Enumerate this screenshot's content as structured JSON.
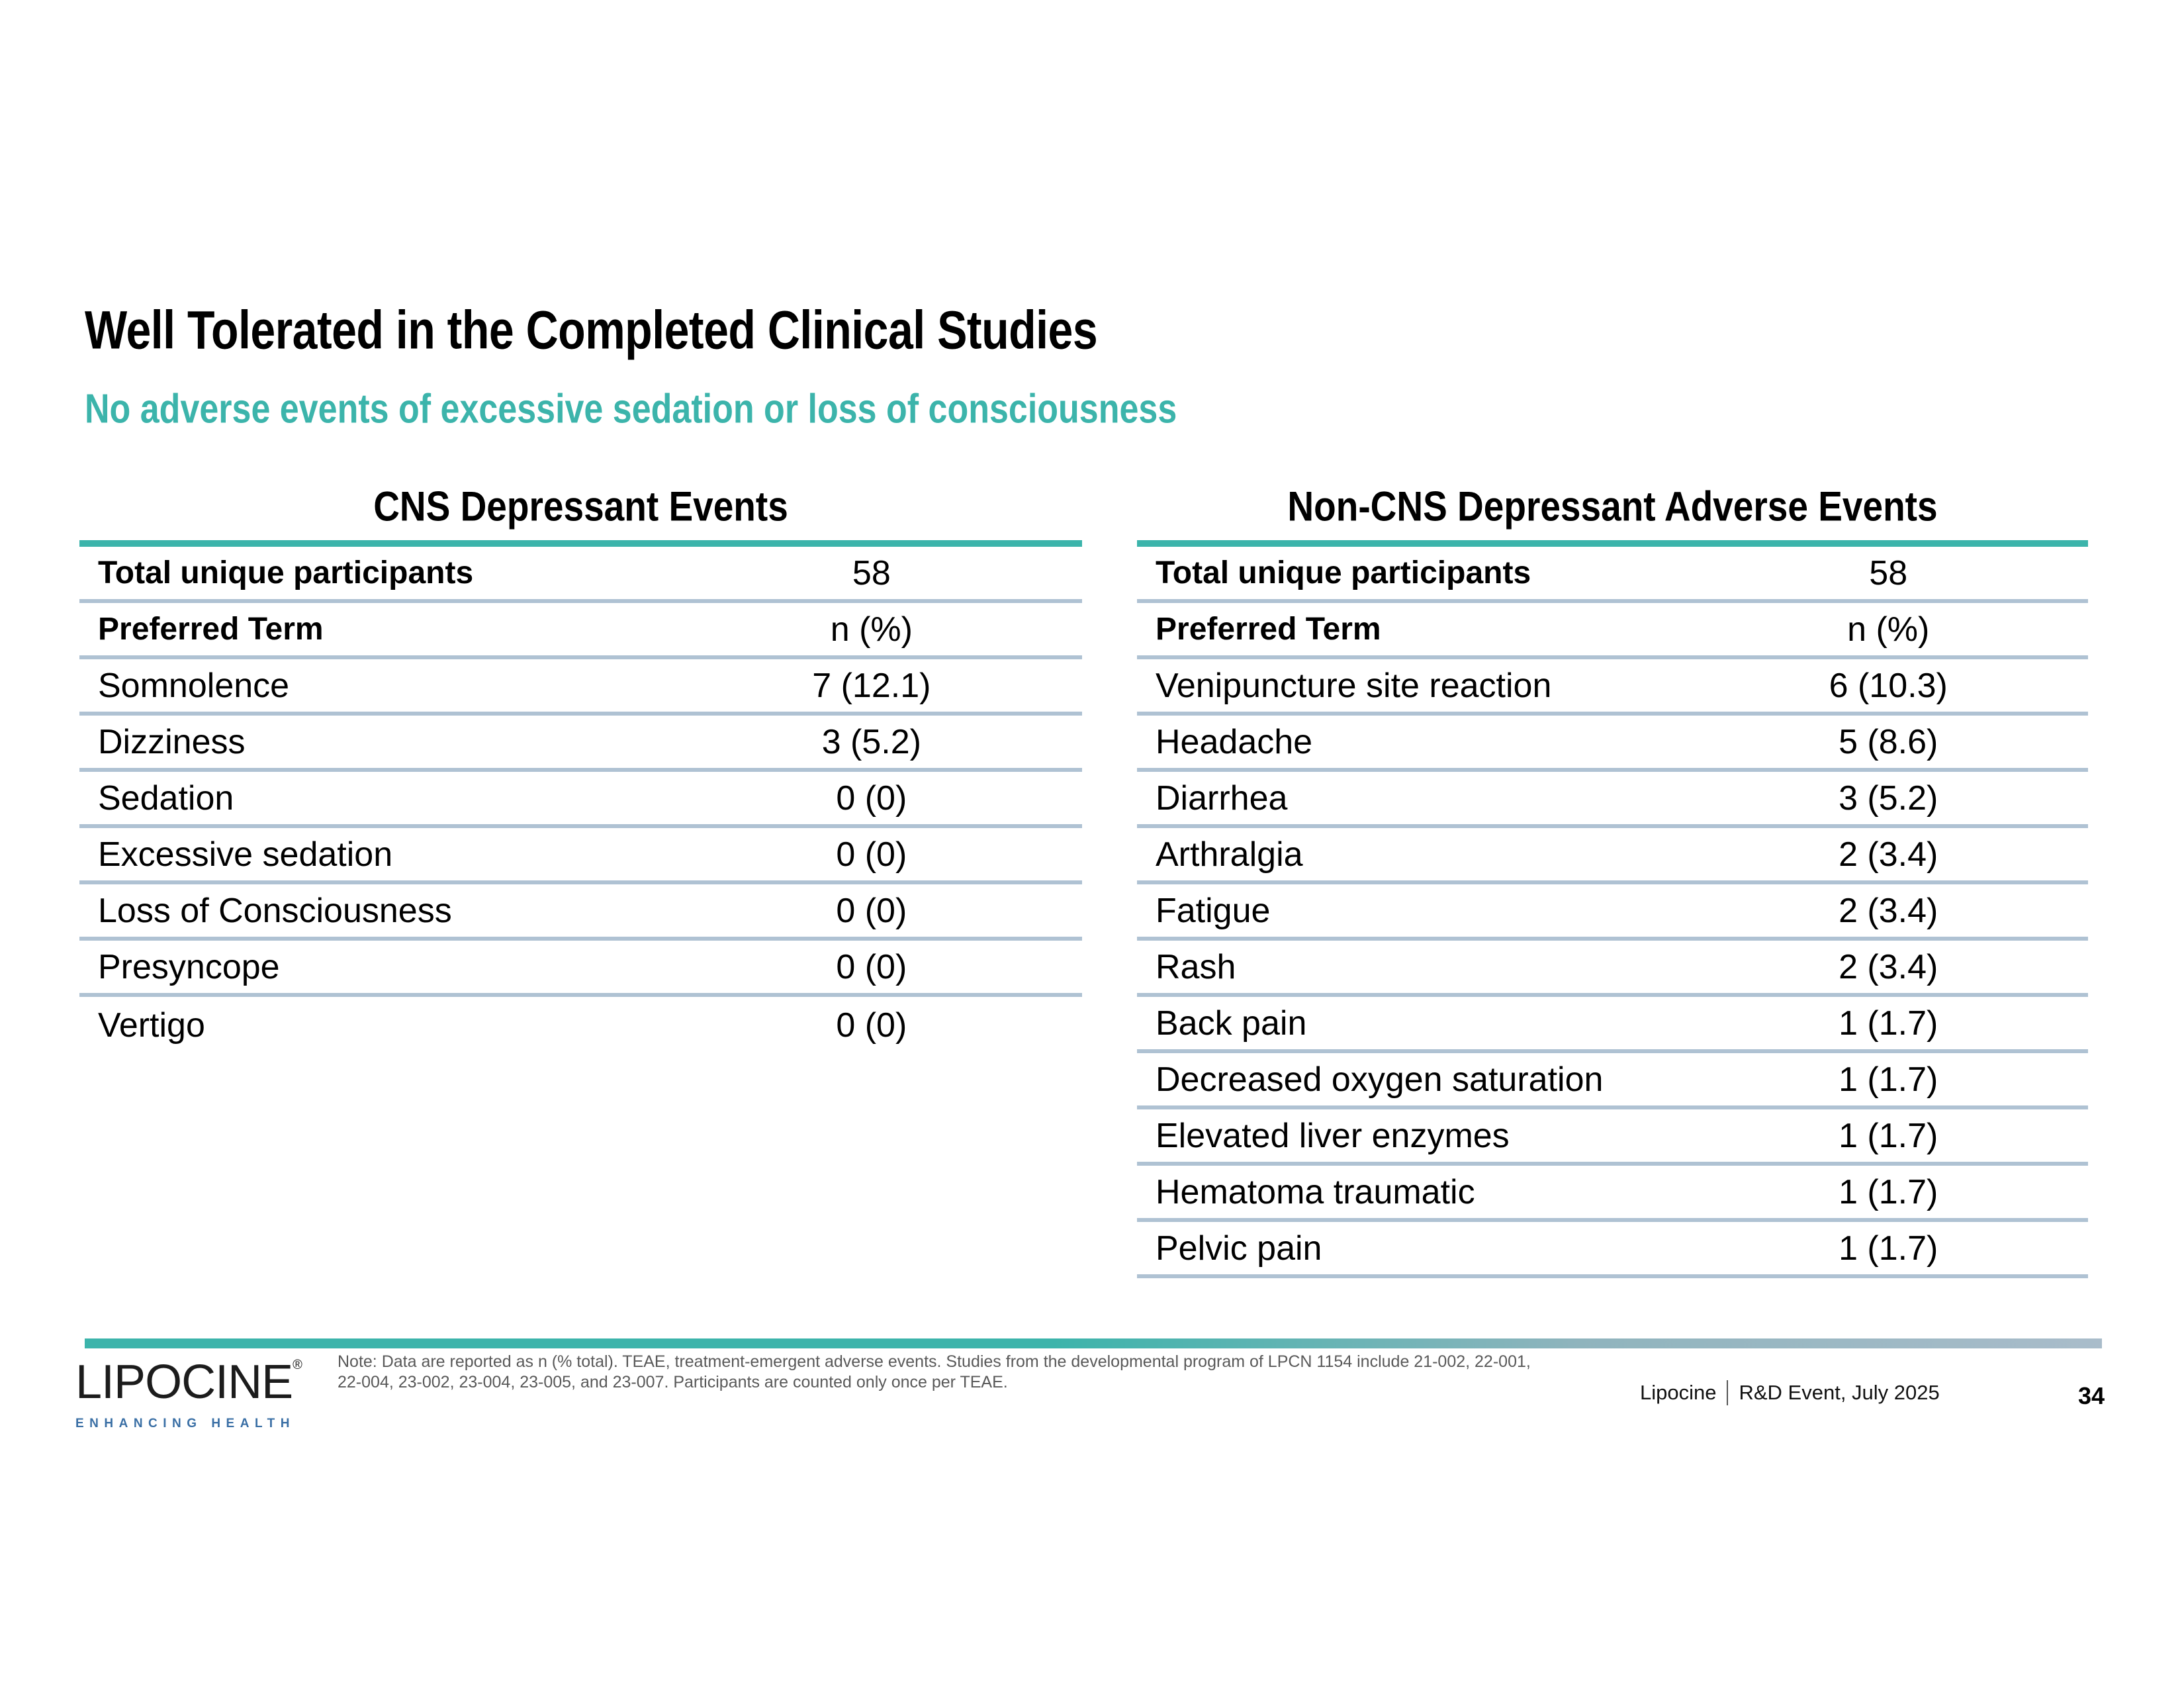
{
  "slide": {
    "title": "Well Tolerated in the Completed Clinical Studies",
    "subtitle": "No adverse events of excessive sedation or loss of consciousness"
  },
  "tables": [
    {
      "title": "CNS Depressant Events",
      "total_label": "Total unique participants",
      "total_value": "58",
      "col_term": "Preferred Term",
      "col_value": "n (%)",
      "rows": [
        [
          "Somnolence",
          "7 (12.1)"
        ],
        [
          "Dizziness",
          "3 (5.2)"
        ],
        [
          "Sedation",
          "0 (0)"
        ],
        [
          "Excessive sedation",
          "0 (0)"
        ],
        [
          "Loss of Consciousness",
          "0 (0)"
        ],
        [
          "Presyncope",
          "0 (0)"
        ],
        [
          "Vertigo",
          "0 (0)"
        ]
      ]
    },
    {
      "title": "Non-CNS Depressant Adverse Events",
      "total_label": "Total unique participants",
      "total_value": "58",
      "col_term": "Preferred Term",
      "col_value": "n (%)",
      "rows": [
        [
          "Venipuncture site reaction",
          "6 (10.3)"
        ],
        [
          "Headache",
          "5 (8.6)"
        ],
        [
          "Diarrhea",
          "3 (5.2)"
        ],
        [
          "Arthralgia",
          "2 (3.4)"
        ],
        [
          "Fatigue",
          "2 (3.4)"
        ],
        [
          "Rash",
          "2 (3.4)"
        ],
        [
          "Back pain",
          "1 (1.7)"
        ],
        [
          "Decreased oxygen saturation",
          "1 (1.7)"
        ],
        [
          "Elevated liver enzymes",
          "1 (1.7)"
        ],
        [
          "Hematoma traumatic",
          "1 (1.7)"
        ],
        [
          "Pelvic pain",
          "1 (1.7)"
        ]
      ]
    }
  ],
  "note_lines": [
    "Note: Data are reported as n (% total). TEAE, treatment-emergent adverse events. Studies from the developmental program of LPCN 1154 include 21-002, 22-001,",
    "22-004, 23-002, 23-004, 23-005, and 23-007. Participants are counted only once per TEAE."
  ],
  "footer": {
    "brand": "Lipocine",
    "event": "R&D Event, July 2025",
    "page": "34"
  },
  "logo": {
    "wordmark": "LIPOCINE",
    "registered": "®",
    "tagline": "ENHANCING HEALTH"
  },
  "colors": {
    "teal_accent": "#3CB4AB",
    "row_line": "#AFC2D3",
    "bar_gradient_end": "#A9BCCA",
    "tagline_blue": "#3A6FA5",
    "note_gray": "#595959"
  }
}
